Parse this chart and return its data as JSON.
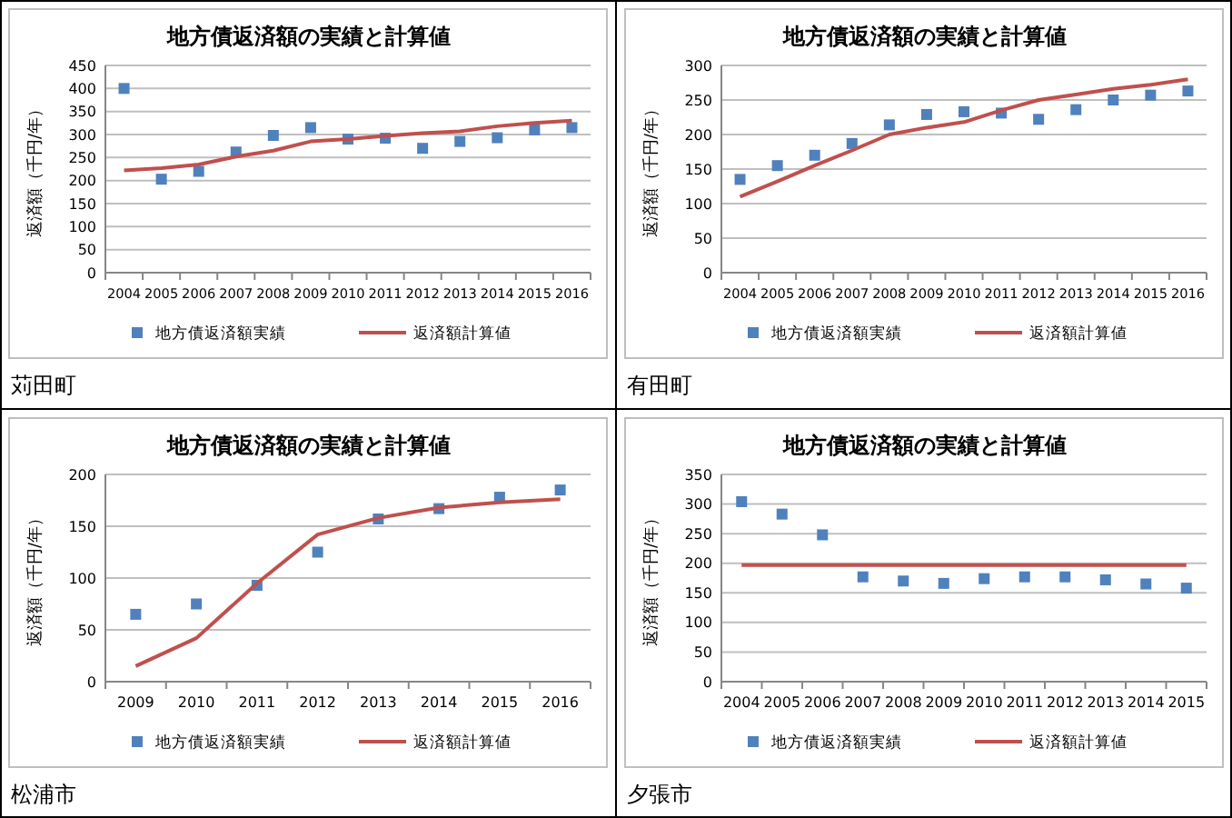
{
  "chart_data": [
    {
      "type": "scatter",
      "title": "地方債返済額の実績と計算値",
      "ylabel": "返済額（千円/年）",
      "categories": [
        "2004",
        "2005",
        "2006",
        "2007",
        "2008",
        "2009",
        "2010",
        "2011",
        "2012",
        "2013",
        "2014",
        "2015",
        "2016"
      ],
      "ylim": [
        0,
        450
      ],
      "yticks": [
        0,
        50,
        100,
        150,
        200,
        250,
        300,
        350,
        400,
        450
      ],
      "grid": "y",
      "legend": "bottom",
      "annotations": [
        "苅田町"
      ],
      "series": [
        {
          "name": "地方債返済額実績",
          "marker": "square",
          "color": "#4f81bd",
          "values": [
            400,
            203,
            220,
            262,
            298,
            315,
            290,
            292,
            270,
            285,
            293,
            310,
            315
          ]
        },
        {
          "name": "返済額計算値",
          "type": "line",
          "marker": "none",
          "color": "#c0504d",
          "values": [
            222,
            227,
            235,
            252,
            265,
            285,
            290,
            297,
            303,
            307,
            318,
            325,
            330
          ]
        }
      ]
    },
    {
      "type": "scatter",
      "title": "地方債返済額の実績と計算値",
      "ylabel": "返済額（千円/年）",
      "categories": [
        "2004",
        "2005",
        "2006",
        "2007",
        "2008",
        "2009",
        "2010",
        "2011",
        "2012",
        "2013",
        "2014",
        "2015",
        "2016"
      ],
      "ylim": [
        0,
        300
      ],
      "yticks": [
        0,
        50,
        100,
        150,
        200,
        250,
        300
      ],
      "grid": "y",
      "legend": "bottom",
      "annotations": [
        "有田町"
      ],
      "series": [
        {
          "name": "地方債返済額実績",
          "marker": "square",
          "color": "#4f81bd",
          "values": [
            135,
            155,
            170,
            187,
            214,
            229,
            233,
            231,
            222,
            236,
            250,
            257,
            263
          ]
        },
        {
          "name": "返済額計算値",
          "type": "line",
          "marker": "none",
          "color": "#c0504d",
          "values": [
            110,
            132,
            155,
            177,
            200,
            210,
            218,
            235,
            250,
            258,
            266,
            272,
            280
          ]
        }
      ]
    },
    {
      "type": "scatter",
      "title": "地方債返済額の実績と計算値",
      "ylabel": "返済額（千円/年）",
      "categories": [
        "2009",
        "2010",
        "2011",
        "2012",
        "2013",
        "2014",
        "2015",
        "2016"
      ],
      "ylim": [
        0,
        200
      ],
      "yticks": [
        0,
        50,
        100,
        150,
        200
      ],
      "grid": "y",
      "legend": "bottom",
      "annotations": [
        "松浦市"
      ],
      "series": [
        {
          "name": "地方債返済額実績",
          "marker": "square",
          "color": "#4f81bd",
          "values": [
            65,
            75,
            93,
            125,
            157,
            167,
            178,
            185
          ]
        },
        {
          "name": "返済額計算値",
          "type": "line",
          "marker": "none",
          "color": "#c0504d",
          "values": [
            15,
            42,
            95,
            142,
            158,
            168,
            173,
            176
          ]
        }
      ]
    },
    {
      "type": "scatter",
      "title": "地方債返済額の実績と計算値",
      "ylabel": "返済額（千円/年）",
      "categories": [
        "2004",
        "2005",
        "2006",
        "2007",
        "2008",
        "2009",
        "2010",
        "2011",
        "2012",
        "2013",
        "2014",
        "2015"
      ],
      "ylim": [
        0,
        350
      ],
      "yticks": [
        0,
        50,
        100,
        150,
        200,
        250,
        300,
        350
      ],
      "grid": "y",
      "legend": "bottom",
      "annotations": [
        "夕張市"
      ],
      "series": [
        {
          "name": "地方債返済額実績",
          "marker": "square",
          "color": "#4f81bd",
          "values": [
            304,
            283,
            248,
            177,
            170,
            166,
            174,
            177,
            177,
            172,
            165,
            158
          ]
        },
        {
          "name": "返済額計算値",
          "type": "line",
          "marker": "none",
          "color": "#c0504d",
          "values": [
            197,
            197,
            197,
            197,
            197,
            197,
            197,
            197,
            197,
            197,
            197,
            197
          ]
        }
      ]
    }
  ]
}
